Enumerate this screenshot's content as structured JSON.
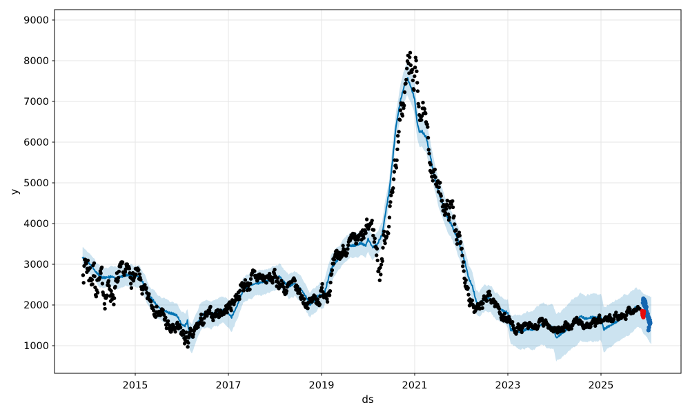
{
  "chart_data": {
    "type": "scatter",
    "title": "",
    "xlabel": "ds",
    "ylabel": "y",
    "x_tick_labels": [
      "2015",
      "2017",
      "2019",
      "2021",
      "2023",
      "2025"
    ],
    "x_tick_values": [
      2015,
      2017,
      2019,
      2021,
      2023,
      2025
    ],
    "y_tick_labels": [
      "1000",
      "2000",
      "3000",
      "4000",
      "5000",
      "6000",
      "7000",
      "8000",
      "9000"
    ],
    "y_tick_values": [
      1000,
      2000,
      3000,
      4000,
      5000,
      6000,
      7000,
      8000,
      9000
    ],
    "xlim": [
      2013.27,
      2026.72
    ],
    "ylim": [
      320,
      9250
    ],
    "grid": true,
    "legend": "none",
    "colors": {
      "history_points": "#000000",
      "forecast_line": "#0072b2",
      "uncertainty_band": "#0072b2",
      "uncertainty_band_opacity": 0.2,
      "recent_points": "#1565b0",
      "anomaly_points": "#e60c0c",
      "grid": "#e6e6e6",
      "spine": "#000000",
      "background": "#ffffff"
    },
    "forecast_t_yhat_lo_hi": [
      [
        2013.87,
        3170,
        2920,
        3420
      ],
      [
        2013.95,
        3090,
        2840,
        3340
      ],
      [
        2014.05,
        2980,
        2730,
        3230
      ],
      [
        2014.15,
        2820,
        2570,
        3070
      ],
      [
        2014.25,
        2690,
        2435,
        2945
      ],
      [
        2014.35,
        2660,
        2400,
        2920
      ],
      [
        2014.5,
        2700,
        2440,
        2960
      ],
      [
        2014.6,
        2650,
        2390,
        2910
      ],
      [
        2014.7,
        2700,
        2435,
        2965
      ],
      [
        2014.85,
        2740,
        2475,
        3005
      ],
      [
        2015.0,
        2710,
        2440,
        2980
      ],
      [
        2015.1,
        2700,
        2430,
        2970
      ],
      [
        2015.2,
        2460,
        2185,
        2735
      ],
      [
        2015.3,
        2210,
        1930,
        2490
      ],
      [
        2015.4,
        2090,
        1805,
        2375
      ],
      [
        2015.5,
        1950,
        1660,
        2240
      ],
      [
        2015.6,
        1870,
        1575,
        2165
      ],
      [
        2015.7,
        1815,
        1515,
        2115
      ],
      [
        2015.8,
        1780,
        1475,
        2085
      ],
      [
        2015.9,
        1730,
        1420,
        2040
      ],
      [
        2016.0,
        1510,
        1180,
        1840
      ],
      [
        2016.07,
        1480,
        1145,
        1815
      ],
      [
        2016.12,
        1590,
        1250,
        1930
      ],
      [
        2016.17,
        1260,
        910,
        1610
      ],
      [
        2016.22,
        1200,
        845,
        1555
      ],
      [
        2016.3,
        1420,
        1060,
        1780
      ],
      [
        2016.4,
        1710,
        1355,
        2065
      ],
      [
        2016.5,
        1800,
        1450,
        2150
      ],
      [
        2016.62,
        1780,
        1435,
        2125
      ],
      [
        2016.75,
        1820,
        1480,
        2160
      ],
      [
        2016.88,
        1890,
        1555,
        2225
      ],
      [
        2017.0,
        1790,
        1460,
        2120
      ],
      [
        2017.07,
        1700,
        1370,
        2030
      ],
      [
        2017.2,
        2010,
        1685,
        2335
      ],
      [
        2017.32,
        2370,
        2050,
        2690
      ],
      [
        2017.45,
        2480,
        2165,
        2795
      ],
      [
        2017.6,
        2530,
        2220,
        2840
      ],
      [
        2017.75,
        2570,
        2260,
        2880
      ],
      [
        2017.9,
        2610,
        2305,
        2915
      ],
      [
        2018.0,
        2660,
        2360,
        2960
      ],
      [
        2018.1,
        2710,
        2410,
        3010
      ],
      [
        2018.2,
        2550,
        2250,
        2850
      ],
      [
        2018.3,
        2460,
        2160,
        2760
      ],
      [
        2018.42,
        2520,
        2220,
        2820
      ],
      [
        2018.55,
        2400,
        2100,
        2700
      ],
      [
        2018.65,
        2230,
        1930,
        2530
      ],
      [
        2018.75,
        2010,
        1705,
        2315
      ],
      [
        2018.85,
        2110,
        1805,
        2415
      ],
      [
        2018.95,
        2240,
        1935,
        2545
      ],
      [
        2019.05,
        2230,
        1920,
        2540
      ],
      [
        2019.2,
        2880,
        2570,
        3190
      ],
      [
        2019.35,
        3110,
        2800,
        3420
      ],
      [
        2019.5,
        3340,
        3035,
        3645
      ],
      [
        2019.6,
        3450,
        3150,
        3750
      ],
      [
        2019.72,
        3460,
        3165,
        3755
      ],
      [
        2019.85,
        3510,
        3215,
        3805
      ],
      [
        2019.95,
        3460,
        3165,
        3755
      ],
      [
        2020.0,
        3630,
        3335,
        3925
      ],
      [
        2020.1,
        3410,
        3110,
        3710
      ],
      [
        2020.2,
        3500,
        3190,
        3810
      ],
      [
        2020.3,
        3720,
        3400,
        4040
      ],
      [
        2020.38,
        4310,
        3980,
        4640
      ],
      [
        2020.45,
        4760,
        4420,
        5100
      ],
      [
        2020.52,
        5500,
        5145,
        5855
      ],
      [
        2020.6,
        6400,
        6035,
        6765
      ],
      [
        2020.7,
        7050,
        6675,
        7425
      ],
      [
        2020.78,
        7400,
        7020,
        7780
      ],
      [
        2020.84,
        7575,
        7190,
        7960
      ],
      [
        2020.92,
        7350,
        6965,
        7735
      ],
      [
        2021.0,
        7050,
        6670,
        7430
      ],
      [
        2021.05,
        6500,
        6125,
        6875
      ],
      [
        2021.1,
        6250,
        5880,
        6620
      ],
      [
        2021.16,
        6250,
        5885,
        6615
      ],
      [
        2021.25,
        6100,
        5740,
        6460
      ],
      [
        2021.32,
        5750,
        5395,
        6105
      ],
      [
        2021.4,
        5280,
        4930,
        5630
      ],
      [
        2021.5,
        4820,
        4475,
        5165
      ],
      [
        2021.6,
        4480,
        4140,
        4820
      ],
      [
        2021.7,
        4150,
        3815,
        4485
      ],
      [
        2021.8,
        3950,
        3620,
        4280
      ],
      [
        2021.9,
        3680,
        3355,
        4005
      ],
      [
        2022.0,
        3340,
        3020,
        3660
      ],
      [
        2022.08,
        3050,
        2730,
        3370
      ],
      [
        2022.16,
        2660,
        2340,
        2980
      ],
      [
        2022.24,
        2460,
        2140,
        2780
      ],
      [
        2022.32,
        2090,
        1770,
        2410
      ],
      [
        2022.38,
        2010,
        1690,
        2330
      ],
      [
        2022.5,
        2150,
        1825,
        2475
      ],
      [
        2022.6,
        2170,
        1845,
        2495
      ],
      [
        2022.75,
        1960,
        1630,
        2290
      ],
      [
        2022.88,
        1870,
        1535,
        2205
      ],
      [
        2023.0,
        1800,
        1460,
        2140
      ],
      [
        2023.06,
        1390,
        1040,
        1740
      ],
      [
        2023.15,
        1360,
        980,
        1740
      ],
      [
        2023.28,
        1330,
        910,
        1750
      ],
      [
        2023.4,
        1400,
        950,
        1850
      ],
      [
        2023.52,
        1380,
        900,
        1860
      ],
      [
        2023.64,
        1460,
        960,
        1960
      ],
      [
        2023.75,
        1530,
        1010,
        2050
      ],
      [
        2023.88,
        1480,
        940,
        2020
      ],
      [
        2023.98,
        1440,
        890,
        1990
      ],
      [
        2024.04,
        1190,
        630,
        1750
      ],
      [
        2024.12,
        1260,
        690,
        1830
      ],
      [
        2024.2,
        1330,
        750,
        1910
      ],
      [
        2024.35,
        1490,
        900,
        2080
      ],
      [
        2024.48,
        1610,
        1020,
        2200
      ],
      [
        2024.56,
        1730,
        1145,
        2315
      ],
      [
        2024.66,
        1660,
        1080,
        2240
      ],
      [
        2024.8,
        1690,
        1115,
        2265
      ],
      [
        2024.92,
        1700,
        1130,
        2270
      ],
      [
        2025.0,
        1690,
        1130,
        2250
      ],
      [
        2025.06,
        1390,
        840,
        1940
      ],
      [
        2025.18,
        1480,
        940,
        2020
      ],
      [
        2025.3,
        1560,
        1030,
        2090
      ],
      [
        2025.42,
        1650,
        1130,
        2170
      ],
      [
        2025.55,
        1760,
        1250,
        2270
      ],
      [
        2025.65,
        1830,
        1330,
        2330
      ],
      [
        2025.76,
        1950,
        1460,
        2440
      ],
      [
        2025.85,
        1900,
        1420,
        2380
      ],
      [
        2025.92,
        1780,
        1290,
        2270
      ],
      [
        2026.0,
        1700,
        1170,
        2230
      ],
      [
        2026.08,
        1620,
        1020,
        2220
      ]
    ],
    "actuals_t_mean_spread": [
      [
        2013.88,
        3000,
        500
      ],
      [
        2013.95,
        3050,
        700
      ],
      [
        2014.05,
        2900,
        750
      ],
      [
        2014.15,
        2750,
        700
      ],
      [
        2014.25,
        2450,
        500
      ],
      [
        2014.35,
        2350,
        450
      ],
      [
        2014.45,
        2400,
        400
      ],
      [
        2014.55,
        2300,
        400
      ],
      [
        2014.65,
        2600,
        350
      ],
      [
        2014.75,
        2750,
        300
      ],
      [
        2014.85,
        2750,
        300
      ],
      [
        2014.95,
        2700,
        300
      ],
      [
        2015.05,
        2650,
        300
      ],
      [
        2015.15,
        2400,
        300
      ],
      [
        2015.25,
        2100,
        250
      ],
      [
        2015.35,
        2050,
        250
      ],
      [
        2015.45,
        1950,
        220
      ],
      [
        2015.55,
        1800,
        250
      ],
      [
        2015.65,
        1600,
        280
      ],
      [
        2015.75,
        1350,
        220
      ],
      [
        2015.85,
        1400,
        250
      ],
      [
        2015.95,
        1300,
        250
      ],
      [
        2016.05,
        1200,
        280
      ],
      [
        2016.15,
        1100,
        280
      ],
      [
        2016.25,
        1200,
        250
      ],
      [
        2016.35,
        1500,
        250
      ],
      [
        2016.45,
        1600,
        220
      ],
      [
        2016.55,
        1700,
        200
      ],
      [
        2016.65,
        1750,
        200
      ],
      [
        2016.75,
        1800,
        200
      ],
      [
        2016.85,
        1850,
        200
      ],
      [
        2016.95,
        1900,
        200
      ],
      [
        2017.05,
        2000,
        220
      ],
      [
        2017.15,
        2200,
        250
      ],
      [
        2017.25,
        2400,
        250
      ],
      [
        2017.35,
        2500,
        250
      ],
      [
        2017.45,
        2550,
        280
      ],
      [
        2017.55,
        2600,
        280
      ],
      [
        2017.65,
        2700,
        250
      ],
      [
        2017.75,
        2650,
        250
      ],
      [
        2017.85,
        2600,
        250
      ],
      [
        2017.95,
        2650,
        250
      ],
      [
        2018.05,
        2650,
        280
      ],
      [
        2018.15,
        2500,
        250
      ],
      [
        2018.25,
        2350,
        250
      ],
      [
        2018.35,
        2450,
        220
      ],
      [
        2018.45,
        2400,
        220
      ],
      [
        2018.55,
        2250,
        220
      ],
      [
        2018.65,
        2100,
        200
      ],
      [
        2018.75,
        2050,
        200
      ],
      [
        2018.85,
        2150,
        200
      ],
      [
        2018.95,
        2200,
        250
      ],
      [
        2019.05,
        2350,
        300
      ],
      [
        2019.15,
        2500,
        350
      ],
      [
        2019.25,
        2800,
        300
      ],
      [
        2019.35,
        3100,
        300
      ],
      [
        2019.45,
        3300,
        300
      ],
      [
        2019.55,
        3500,
        250
      ],
      [
        2019.65,
        3450,
        250
      ],
      [
        2019.75,
        3500,
        280
      ],
      [
        2019.85,
        3550,
        300
      ],
      [
        2019.95,
        3700,
        350
      ],
      [
        2020.05,
        4000,
        300
      ],
      [
        2020.12,
        3800,
        350
      ],
      [
        2020.18,
        3300,
        600
      ],
      [
        2020.26,
        2850,
        550
      ],
      [
        2020.33,
        3500,
        450
      ],
      [
        2020.4,
        3900,
        400
      ],
      [
        2020.48,
        4400,
        350
      ],
      [
        2020.55,
        5200,
        400
      ],
      [
        2020.65,
        6100,
        450
      ],
      [
        2020.75,
        6900,
        500
      ],
      [
        2020.82,
        7500,
        600
      ],
      [
        2020.88,
        7900,
        850
      ],
      [
        2020.95,
        7500,
        500
      ],
      [
        2021.02,
        7700,
        500
      ],
      [
        2021.1,
        6900,
        400
      ],
      [
        2021.2,
        6650,
        350
      ],
      [
        2021.3,
        5800,
        350
      ],
      [
        2021.4,
        5300,
        400
      ],
      [
        2021.5,
        4800,
        350
      ],
      [
        2021.6,
        4600,
        300
      ],
      [
        2021.7,
        4300,
        350
      ],
      [
        2021.8,
        4400,
        350
      ],
      [
        2021.9,
        3900,
        400
      ],
      [
        2022.0,
        3200,
        400
      ],
      [
        2022.1,
        2700,
        350
      ],
      [
        2022.2,
        2300,
        350
      ],
      [
        2022.3,
        1900,
        250
      ],
      [
        2022.4,
        1800,
        200
      ],
      [
        2022.5,
        2100,
        200
      ],
      [
        2022.6,
        2200,
        200
      ],
      [
        2022.7,
        2100,
        200
      ],
      [
        2022.8,
        1900,
        200
      ],
      [
        2022.9,
        1750,
        200
      ],
      [
        2023.0,
        1650,
        200
      ],
      [
        2023.1,
        1500,
        150
      ],
      [
        2023.2,
        1450,
        150
      ],
      [
        2023.3,
        1400,
        150
      ],
      [
        2023.4,
        1450,
        150
      ],
      [
        2023.5,
        1400,
        150
      ],
      [
        2023.6,
        1450,
        150
      ],
      [
        2023.7,
        1550,
        150
      ],
      [
        2023.8,
        1500,
        150
      ],
      [
        2023.9,
        1500,
        150
      ],
      [
        2024.0,
        1450,
        150
      ],
      [
        2024.1,
        1400,
        180
      ],
      [
        2024.2,
        1350,
        180
      ],
      [
        2024.3,
        1450,
        150
      ],
      [
        2024.4,
        1550,
        150
      ],
      [
        2024.5,
        1600,
        150
      ],
      [
        2024.6,
        1550,
        150
      ],
      [
        2024.7,
        1500,
        150
      ],
      [
        2024.8,
        1500,
        150
      ],
      [
        2024.9,
        1550,
        150
      ],
      [
        2025.0,
        1600,
        150
      ],
      [
        2025.1,
        1600,
        150
      ],
      [
        2025.2,
        1650,
        150
      ],
      [
        2025.3,
        1700,
        150
      ],
      [
        2025.4,
        1750,
        150
      ],
      [
        2025.5,
        1800,
        150
      ],
      [
        2025.6,
        1850,
        130
      ],
      [
        2025.7,
        1900,
        120
      ],
      [
        2025.78,
        1900,
        120
      ],
      [
        2025.84,
        1920,
        100
      ]
    ],
    "recent_points_blue": [
      [
        2025.9,
        2050
      ],
      [
        2025.905,
        2120
      ],
      [
        2025.91,
        2160
      ],
      [
        2025.915,
        2100
      ],
      [
        2025.92,
        2060
      ],
      [
        2025.925,
        1990
      ],
      [
        2025.93,
        2130
      ],
      [
        2025.935,
        2080
      ],
      [
        2025.94,
        2020
      ],
      [
        2025.945,
        1950
      ],
      [
        2025.95,
        2090
      ],
      [
        2025.955,
        2040
      ],
      [
        2025.96,
        1980
      ],
      [
        2025.965,
        1900
      ],
      [
        2025.97,
        1860
      ],
      [
        2025.975,
        1950
      ],
      [
        2025.98,
        1840
      ],
      [
        2025.985,
        1800
      ],
      [
        2025.99,
        1760
      ],
      [
        2026.0,
        1720
      ],
      [
        2026.005,
        1780
      ],
      [
        2026.01,
        1690
      ],
      [
        2026.015,
        1650
      ],
      [
        2026.02,
        1710
      ],
      [
        2026.025,
        1630
      ],
      [
        2026.03,
        1590
      ],
      [
        2026.035,
        1670
      ],
      [
        2026.04,
        1560
      ],
      [
        2026.045,
        1620
      ],
      [
        2026.05,
        1530
      ],
      [
        2026.055,
        1590
      ],
      [
        2026.06,
        1550
      ],
      [
        2026.02,
        1380
      ],
      [
        2026.03,
        1450
      ]
    ],
    "anomaly_points_red": [
      [
        2025.885,
        1850
      ],
      [
        2025.89,
        1790
      ],
      [
        2025.895,
        1745
      ],
      [
        2025.9,
        1820
      ],
      [
        2025.905,
        1760
      ],
      [
        2025.91,
        1700
      ],
      [
        2025.915,
        1780
      ],
      [
        2025.92,
        1840
      ]
    ]
  }
}
